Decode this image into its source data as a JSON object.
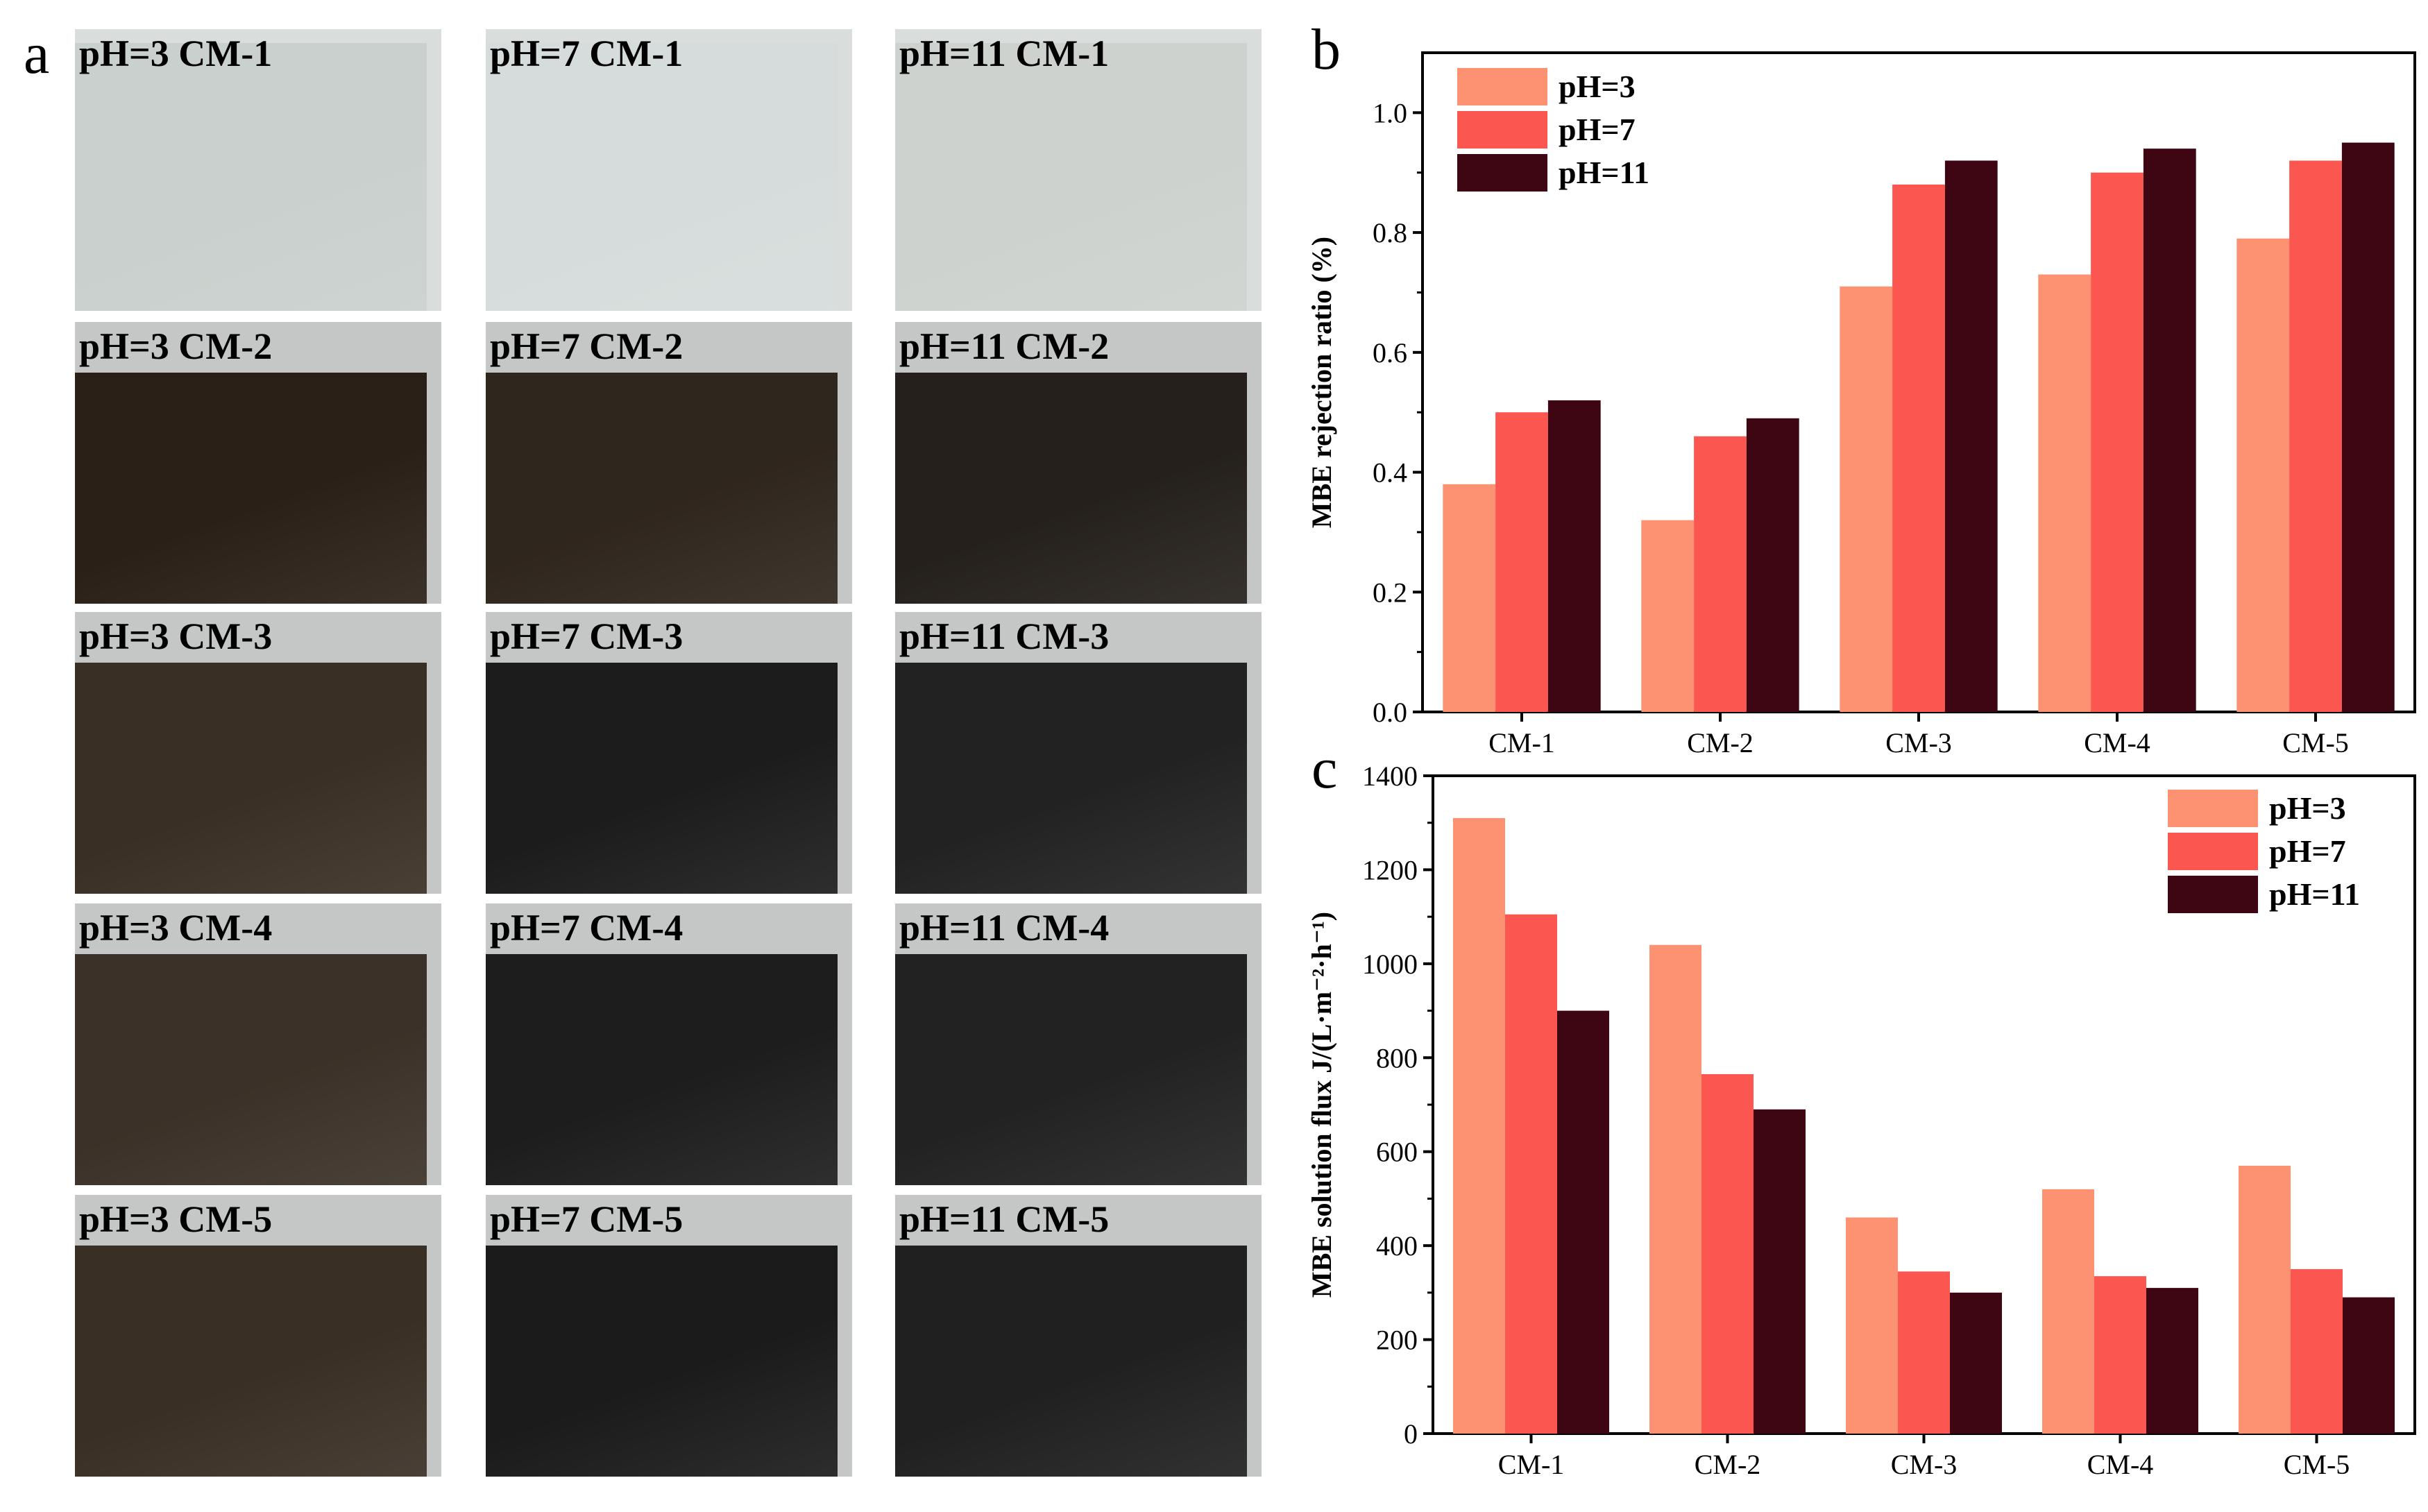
{
  "panel_letters": {
    "a": "a",
    "b": "b",
    "c": "c"
  },
  "photos": {
    "rows": [
      {
        "labels": [
          "pH=3 CM-1",
          "pH=7 CM-1",
          "pH=11 CM-1"
        ],
        "colors": [
          "#c9d0cd",
          "#d5dcdb",
          "#cdd2ce"
        ]
      },
      {
        "labels": [
          "pH=3 CM-2",
          "pH=7 CM-2",
          "pH=11 CM-2"
        ],
        "colors": [
          "#2a2017",
          "#2f261d",
          "#25201b"
        ]
      },
      {
        "labels": [
          "pH=3 CM-3",
          "pH=7 CM-3",
          "pH=11 CM-3"
        ],
        "colors": [
          "#3a2f24",
          "#1c1c1c",
          "#222222"
        ]
      },
      {
        "labels": [
          "pH=3 CM-4",
          "pH=7 CM-4",
          "pH=11 CM-4"
        ],
        "colors": [
          "#3b3128",
          "#1d1d1d",
          "#222222"
        ]
      },
      {
        "labels": [
          "pH=3 CM-5",
          "pH=7 CM-5",
          "pH=11 CM-5"
        ],
        "colors": [
          "#3a2f25",
          "#1b1b1b",
          "#202020"
        ]
      }
    ]
  },
  "colors": {
    "pH3": "#fc9272",
    "pH7": "#fb5650",
    "pH11": "#3e0513"
  },
  "chart_data": [
    {
      "type": "bar",
      "ylabel": "MBE rejection ratio (%)",
      "ylim": [
        0.0,
        1.1
      ],
      "yticks": [
        0.0,
        0.2,
        0.4,
        0.6,
        0.8,
        1.0
      ],
      "ytick_labels": [
        "0.0",
        "0.2",
        "0.4",
        "0.6",
        "0.8",
        "1.0"
      ],
      "categories": [
        "CM-1",
        "CM-2",
        "CM-3",
        "CM-4",
        "CM-5"
      ],
      "legend_position": "top-left",
      "series": [
        {
          "name": "pH=3",
          "values": [
            0.38,
            0.32,
            0.71,
            0.73,
            0.79
          ]
        },
        {
          "name": "pH=7",
          "values": [
            0.5,
            0.46,
            0.88,
            0.9,
            0.92
          ]
        },
        {
          "name": "pH=11",
          "values": [
            0.52,
            0.49,
            0.92,
            0.94,
            0.95
          ]
        }
      ]
    },
    {
      "type": "bar",
      "ylabel": "MBE solution flux J/(L·m⁻²·h⁻¹)",
      "ylim": [
        0,
        1400
      ],
      "yticks": [
        0,
        200,
        400,
        600,
        800,
        1000,
        1200,
        1400
      ],
      "ytick_labels": [
        "0",
        "200",
        "400",
        "600",
        "800",
        "1000",
        "1200",
        "1400"
      ],
      "categories": [
        "CM-1",
        "CM-2",
        "CM-3",
        "CM-4",
        "CM-5"
      ],
      "legend_position": "top-right",
      "series": [
        {
          "name": "pH=3",
          "values": [
            1310,
            1040,
            460,
            520,
            570
          ]
        },
        {
          "name": "pH=7",
          "values": [
            1105,
            765,
            345,
            335,
            350
          ]
        },
        {
          "name": "pH=11",
          "values": [
            900,
            690,
            300,
            310,
            290
          ]
        }
      ]
    }
  ]
}
